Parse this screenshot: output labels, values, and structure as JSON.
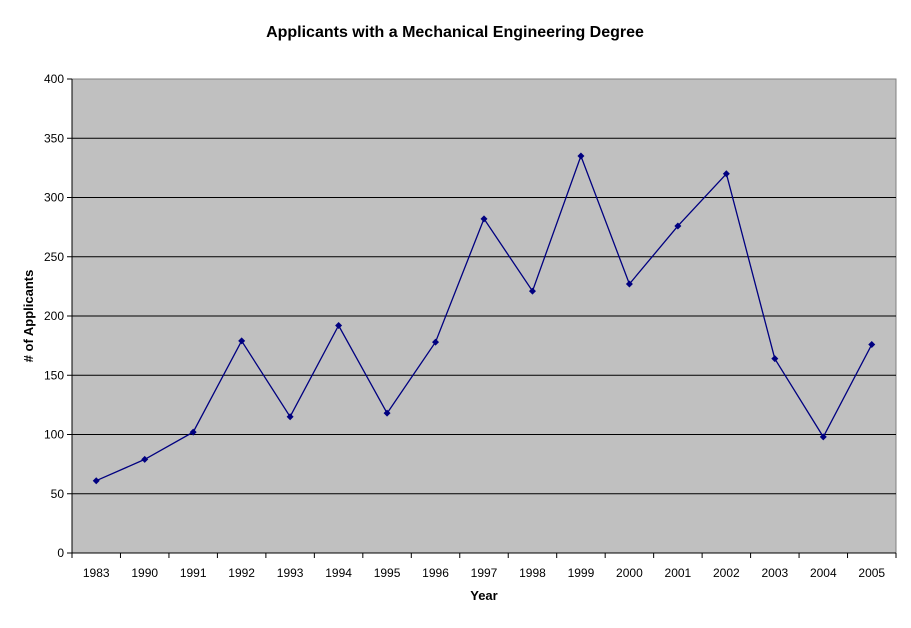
{
  "chart_data": {
    "type": "line",
    "title": "Applicants with a Mechanical Engineering Degree",
    "xlabel": "Year",
    "ylabel": "# of Applicants",
    "categories": [
      "1983",
      "1990",
      "1991",
      "1992",
      "1993",
      "1994",
      "1995",
      "1996",
      "1997",
      "1998",
      "1999",
      "2000",
      "2001",
      "2002",
      "2003",
      "2004",
      "2005"
    ],
    "series": [
      {
        "name": "",
        "values": [
          61,
          79,
          102,
          179,
          115,
          192,
          118,
          178,
          282,
          221,
          335,
          227,
          276,
          320,
          164,
          98,
          176
        ]
      }
    ],
    "ylim": [
      0,
      400
    ],
    "yticks": [
      0,
      50,
      100,
      150,
      200,
      250,
      300,
      350,
      400
    ],
    "grid": "horizontal",
    "legend": "none",
    "colors": {
      "plot_background": "#c0c0c0",
      "line": "#000080",
      "marker": "#000080",
      "gridline": "#000000"
    }
  }
}
